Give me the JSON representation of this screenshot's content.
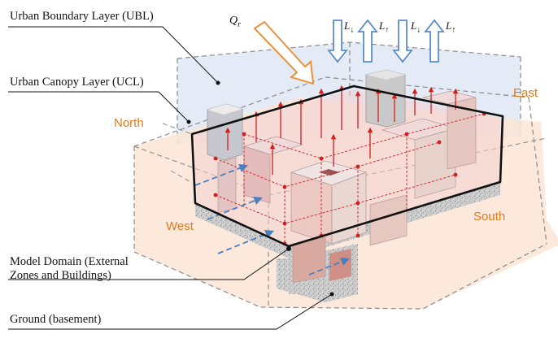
{
  "labels": {
    "ubl": "Urban Boundary Layer (UBL)",
    "ucl": "Urban Canopy Layer (UCL)",
    "domain_line1": "Model Domain (External",
    "domain_line2": "Zones and Buildings)",
    "ground": "Ground (basement)"
  },
  "directions": {
    "north": "North",
    "east": "East",
    "west": "West",
    "south": "South"
  },
  "fluxes": {
    "q_main": "Q",
    "q_sub": "r",
    "l_main": "L",
    "l_down": "↓",
    "l_up": "↑"
  },
  "colors": {
    "orange": "#e07a1a",
    "blue_arrow": "#5b8ec9",
    "red_arrow": "#d21f1f",
    "ubl_fill": "#dfe8f4",
    "ucl_fill": "#fbe5d6"
  }
}
